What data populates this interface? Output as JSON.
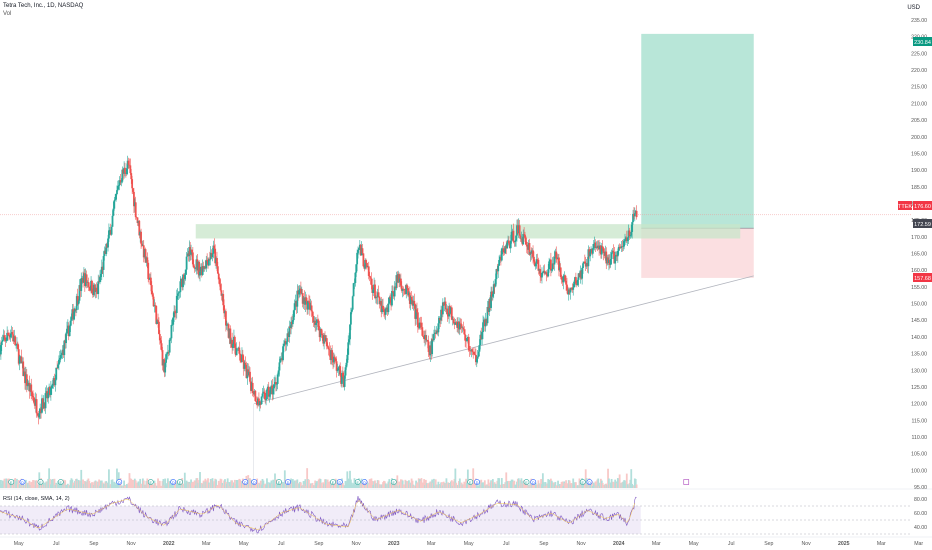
{
  "header": {
    "symbol_line": "Tetra Tech, Inc., 1D, NASDAQ",
    "volume_label": "Vol"
  },
  "currency": "USD",
  "price_badges": {
    "target": "230.84",
    "ticker": "TTEK",
    "last": "176.60",
    "entry": "172.59",
    "stop": "157.68"
  },
  "rsi_label": "RSI (14, close, SMA, 14, 2)",
  "colors": {
    "up": "#26a69a",
    "down": "#ef5350",
    "target_zone": "#b8e6d8",
    "stop_zone": "#fbdfe1",
    "resistance_zone": "#c8e6c9",
    "rsi_line": "#7e57c2",
    "rsi_band": "#ede7f6",
    "trendline": "#b2b5be"
  },
  "event_markers": [
    "E",
    "D",
    "E",
    "E",
    "D",
    "E",
    "D",
    "E",
    "D",
    "D",
    "E",
    "D",
    "E",
    "D",
    "E",
    "D",
    "E",
    "E",
    "D",
    "E",
    "D",
    "E",
    "D"
  ],
  "chart_data": {
    "type": "candlestick",
    "title": "Tetra Tech, Inc., 1D, NASDAQ",
    "y_axis": {
      "range": [
        95,
        238
      ],
      "ticks": [
        95,
        100,
        105,
        110,
        115,
        120,
        125,
        130,
        135,
        140,
        145,
        150,
        155,
        160,
        165,
        170,
        175,
        180,
        185,
        190,
        195,
        200,
        205,
        210,
        215,
        220,
        225,
        230,
        235
      ]
    },
    "rsi_axis": {
      "ticks": [
        40,
        60,
        80
      ]
    },
    "x_axis": {
      "range_months": [
        2021.25,
        2025.25
      ],
      "labels": [
        {
          "label": "May",
          "t": 2021.333
        },
        {
          "label": "Jul",
          "t": 2021.5
        },
        {
          "label": "Sep",
          "t": 2021.667
        },
        {
          "label": "Nov",
          "t": 2021.833
        },
        {
          "label": "2022",
          "t": 2022.0
        },
        {
          "label": "Mar",
          "t": 2022.167
        },
        {
          "label": "May",
          "t": 2022.333
        },
        {
          "label": "Jul",
          "t": 2022.5
        },
        {
          "label": "Sep",
          "t": 2022.667
        },
        {
          "label": "Nov",
          "t": 2022.833
        },
        {
          "label": "2023",
          "t": 2023.0
        },
        {
          "label": "Mar",
          "t": 2023.167
        },
        {
          "label": "May",
          "t": 2023.333
        },
        {
          "label": "Jul",
          "t": 2023.5
        },
        {
          "label": "Sep",
          "t": 2023.667
        },
        {
          "label": "Nov",
          "t": 2023.833
        },
        {
          "label": "2024",
          "t": 2024.0
        },
        {
          "label": "Mar",
          "t": 2024.167
        },
        {
          "label": "May",
          "t": 2024.333
        },
        {
          "label": "Jul",
          "t": 2024.5
        },
        {
          "label": "Sep",
          "t": 2024.667
        },
        {
          "label": "Nov",
          "t": 2024.833
        },
        {
          "label": "2025",
          "t": 2025.0
        },
        {
          "label": "Mar",
          "t": 2025.167
        },
        {
          "label": "Mar",
          "t": 2025.333
        }
      ]
    },
    "price_path": [
      [
        2021.25,
        137
      ],
      [
        2021.3,
        142
      ],
      [
        2021.36,
        128
      ],
      [
        2021.42,
        118
      ],
      [
        2021.48,
        124
      ],
      [
        2021.55,
        141
      ],
      [
        2021.62,
        158
      ],
      [
        2021.68,
        153
      ],
      [
        2021.74,
        172
      ],
      [
        2021.78,
        187
      ],
      [
        2021.82,
        192
      ],
      [
        2021.86,
        175
      ],
      [
        2021.9,
        162
      ],
      [
        2021.94,
        148
      ],
      [
        2021.98,
        130
      ],
      [
        2022.04,
        152
      ],
      [
        2022.09,
        165
      ],
      [
        2022.14,
        160
      ],
      [
        2022.2,
        166
      ],
      [
        2022.26,
        142
      ],
      [
        2022.33,
        132
      ],
      [
        2022.4,
        120
      ],
      [
        2022.47,
        125
      ],
      [
        2022.53,
        141
      ],
      [
        2022.58,
        154
      ],
      [
        2022.63,
        148
      ],
      [
        2022.7,
        138
      ],
      [
        2022.78,
        126
      ],
      [
        2022.84,
        168
      ],
      [
        2022.9,
        156
      ],
      [
        2022.96,
        146
      ],
      [
        2023.02,
        158
      ],
      [
        2023.08,
        150
      ],
      [
        2023.16,
        135
      ],
      [
        2023.22,
        150
      ],
      [
        2023.3,
        143
      ],
      [
        2023.36,
        133
      ],
      [
        2023.42,
        148
      ],
      [
        2023.48,
        165
      ],
      [
        2023.55,
        172
      ],
      [
        2023.6,
        167
      ],
      [
        2023.66,
        158
      ],
      [
        2023.72,
        164
      ],
      [
        2023.78,
        153
      ],
      [
        2023.84,
        160
      ],
      [
        2023.89,
        168
      ],
      [
        2023.95,
        163
      ],
      [
        2024.0,
        165
      ],
      [
        2024.05,
        172
      ],
      [
        2024.08,
        178
      ]
    ],
    "position": {
      "target_price": 230.84,
      "entry_price": 172.59,
      "stop_price": 157.68,
      "last_price": 176.6,
      "start": 2024.1,
      "end": 2024.6
    },
    "resistance_zone": {
      "from": 2022.12,
      "to": 2024.54,
      "low": 169.5,
      "high": 173.8
    },
    "trendline": {
      "p1": [
        2022.38,
        120
      ],
      "p2": [
        2024.6,
        158.3
      ]
    },
    "rsi_path": [
      [
        2021.25,
        62
      ],
      [
        2021.35,
        52
      ],
      [
        2021.42,
        38
      ],
      [
        2021.55,
        66
      ],
      [
        2021.66,
        58
      ],
      [
        2021.75,
        74
      ],
      [
        2021.82,
        80
      ],
      [
        2021.9,
        55
      ],
      [
        2021.98,
        42
      ],
      [
        2022.05,
        66
      ],
      [
        2022.15,
        58
      ],
      [
        2022.22,
        72
      ],
      [
        2022.3,
        45
      ],
      [
        2022.4,
        36
      ],
      [
        2022.5,
        60
      ],
      [
        2022.58,
        68
      ],
      [
        2022.7,
        44
      ],
      [
        2022.8,
        40
      ],
      [
        2022.84,
        80
      ],
      [
        2022.92,
        50
      ],
      [
        2023.02,
        64
      ],
      [
        2023.12,
        48
      ],
      [
        2023.2,
        62
      ],
      [
        2023.3,
        46
      ],
      [
        2023.38,
        58
      ],
      [
        2023.46,
        74
      ],
      [
        2023.55,
        72
      ],
      [
        2023.62,
        50
      ],
      [
        2023.7,
        60
      ],
      [
        2023.78,
        45
      ],
      [
        2023.86,
        64
      ],
      [
        2023.94,
        52
      ],
      [
        2024.0,
        58
      ],
      [
        2024.04,
        45
      ],
      [
        2024.08,
        82
      ]
    ]
  }
}
